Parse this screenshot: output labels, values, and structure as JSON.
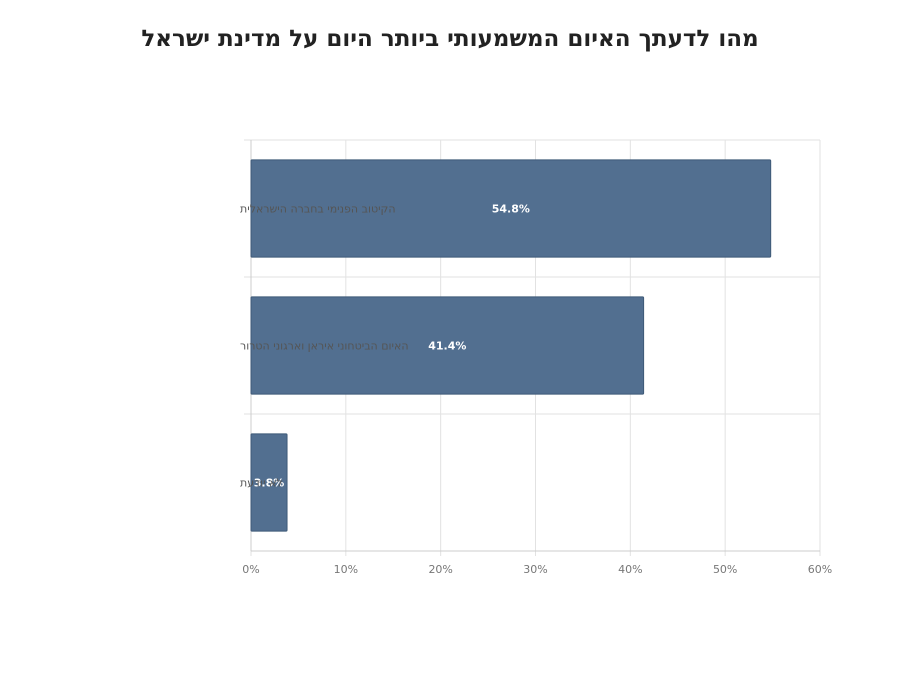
{
  "chart_data": {
    "type": "bar",
    "orientation": "horizontal",
    "title": "מהו לדעתך האיום המשמעותי ביותר היום על מדינת ישראל",
    "xlabel": "",
    "ylabel": "",
    "categories": [
      "הקיטוב הפנימי בחברה הישראלית",
      "האיום הביטחוני  איראן וארגוני הטרור",
      "לא יודעת"
    ],
    "values": [
      54.8,
      41.4,
      3.8
    ],
    "data_labels": [
      "54.8%",
      "41.4%",
      "3.8%"
    ],
    "xlim": [
      0,
      60
    ],
    "xticks": [
      "0%",
      "10%",
      "20%",
      "30%",
      "40%",
      "50%",
      "60%"
    ],
    "grid": true,
    "legend": "none",
    "bar_color": "#526f90"
  }
}
